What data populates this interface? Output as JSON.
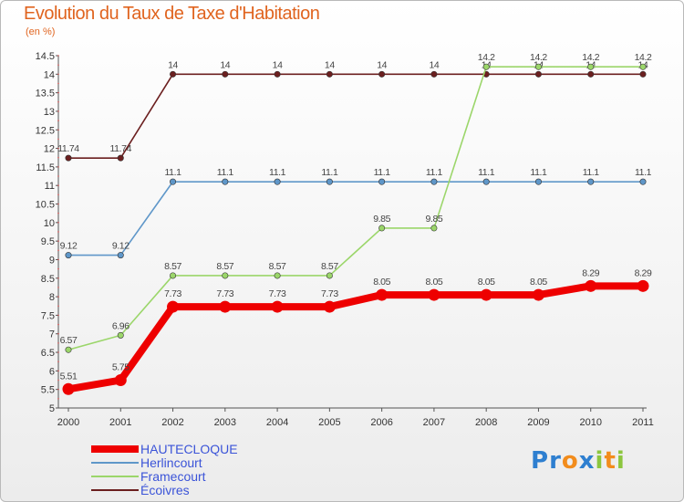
{
  "title": "Evolution du Taux de Taxe d'Habitation",
  "unit_label": "(en %)",
  "logo": {
    "text": "Proxiti",
    "letters": [
      {
        "ch": "P",
        "color": "#2e7fd0"
      },
      {
        "ch": "r",
        "color": "#2e7fd0"
      },
      {
        "ch": "o",
        "color": "#f28c1c"
      },
      {
        "ch": "x",
        "color": "#2e7fd0"
      },
      {
        "ch": "i",
        "color": "#8cc63e"
      },
      {
        "ch": "t",
        "color": "#f28c1c"
      },
      {
        "ch": "i",
        "color": "#8cc63e"
      }
    ]
  },
  "chart_data": {
    "type": "line",
    "title": "Evolution du Taux de Taxe d'Habitation",
    "ylabel": "(en %)",
    "xlabel": "",
    "ylim": [
      5,
      14.5
    ],
    "yticks": [
      "5",
      "5.5",
      "6",
      "6.5",
      "7",
      "7.5",
      "8",
      "8.5",
      "9",
      "9.5",
      "10",
      "10.5",
      "11",
      "11.5",
      "12",
      "12.5",
      "13",
      "13.5",
      "14",
      "14.5"
    ],
    "categories": [
      "2000",
      "2001",
      "2002",
      "2003",
      "2004",
      "2005",
      "2006",
      "2007",
      "2008",
      "2009",
      "2010",
      "2011"
    ],
    "grid": false,
    "series": [
      {
        "name": "Écoivres",
        "color": "#6b1f1f",
        "emphasis": false,
        "values": [
          11.74,
          11.74,
          14,
          14,
          14,
          14,
          14,
          14,
          14,
          14,
          14,
          14
        ],
        "labels": [
          "11.74",
          "11.74",
          "14",
          "14",
          "14",
          "14",
          "14",
          "14",
          "14",
          "14",
          "14",
          "14"
        ]
      },
      {
        "name": "Herlincourt",
        "color": "#5f97c9",
        "emphasis": false,
        "values": [
          9.12,
          9.12,
          11.1,
          11.1,
          11.1,
          11.1,
          11.1,
          11.1,
          11.1,
          11.1,
          11.1,
          11.1
        ],
        "labels": [
          "9.12",
          "9.12",
          "11.1",
          "11.1",
          "11.1",
          "11.1",
          "11.1",
          "11.1",
          "11.1",
          "11.1",
          "11.1",
          "11.1"
        ]
      },
      {
        "name": "Framecourt",
        "color": "#9bd66a",
        "emphasis": false,
        "values": [
          6.57,
          6.96,
          8.57,
          8.57,
          8.57,
          8.57,
          9.85,
          9.85,
          14.2,
          14.2,
          14.2,
          14.2
        ],
        "labels": [
          "6.57",
          "6.96",
          "8.57",
          "8.57",
          "8.57",
          "8.57",
          "9.85",
          "9.85",
          "14.2",
          "14.2",
          "14.2",
          "14.2"
        ]
      },
      {
        "name": "HAUTECLOQUE",
        "color": "#ee0000",
        "emphasis": true,
        "values": [
          5.51,
          5.75,
          7.73,
          7.73,
          7.73,
          7.73,
          8.05,
          8.05,
          8.05,
          8.05,
          8.29,
          8.29
        ],
        "labels": [
          "5.51",
          "5.75",
          "7.73",
          "7.73",
          "7.73",
          "7.73",
          "8.05",
          "8.05",
          "8.05",
          "8.05",
          "8.29",
          "8.29"
        ]
      }
    ],
    "legend": [
      "HAUTECLOQUE",
      "Herlincourt",
      "Framecourt",
      "Écoivres"
    ]
  }
}
